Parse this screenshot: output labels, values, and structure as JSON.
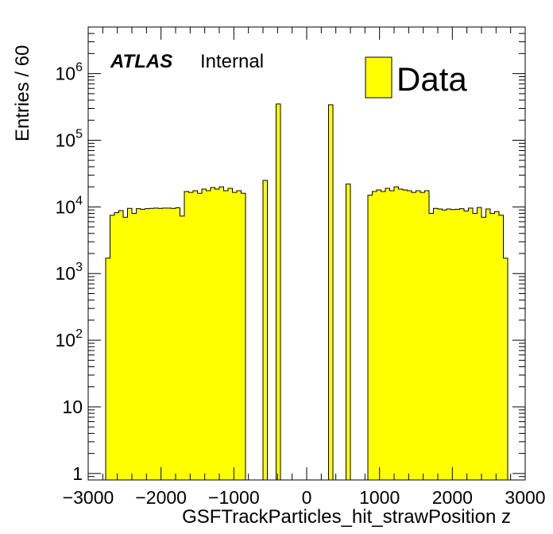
{
  "chart_data": {
    "type": "bar",
    "xlabel": "GSFTrackParticles_hit_strawPosition z",
    "ylabel": "Entries / 60",
    "xlim": [
      -3000,
      3000
    ],
    "ylim": [
      0.8,
      5000000
    ],
    "yscale": "log",
    "bin_width": 60,
    "x_ticks": [
      -3000,
      -2000,
      -1000,
      0,
      1000,
      2000,
      3000
    ],
    "x_tick_labels": [
      "−3000",
      "−2000",
      "−1000",
      "0",
      "1000",
      "2000",
      "3000"
    ],
    "y_ticks": [
      {
        "value": 1,
        "base": "1",
        "exp": ""
      },
      {
        "value": 10,
        "base": "10",
        "exp": ""
      },
      {
        "value": 100,
        "base": "10",
        "exp": "2"
      },
      {
        "value": 1000,
        "base": "10",
        "exp": "3"
      },
      {
        "value": 10000,
        "base": "10",
        "exp": "4"
      },
      {
        "value": 100000,
        "base": "10",
        "exp": "5"
      },
      {
        "value": 1000000,
        "base": "10",
        "exp": "6"
      }
    ],
    "legend": {
      "label": "Data",
      "position": "top-right"
    },
    "annotations": {
      "atlas": "ATLAS",
      "status": "Internal"
    },
    "colors": {
      "fill": "#ffff00",
      "line": "#000000"
    },
    "bins": [
      {
        "x0": -2760,
        "x1": -2700,
        "y": 1700
      },
      {
        "x0": -2700,
        "x1": -2640,
        "y": 7500
      },
      {
        "x0": -2640,
        "x1": -2580,
        "y": 8200
      },
      {
        "x0": -2580,
        "x1": -2520,
        "y": 8800
      },
      {
        "x0": -2520,
        "x1": -2460,
        "y": 7000
      },
      {
        "x0": -2460,
        "x1": -2400,
        "y": 9500
      },
      {
        "x0": -2400,
        "x1": -2340,
        "y": 8000
      },
      {
        "x0": -2340,
        "x1": -2280,
        "y": 9400
      },
      {
        "x0": -2280,
        "x1": -2220,
        "y": 9200
      },
      {
        "x0": -2220,
        "x1": -2160,
        "y": 9400
      },
      {
        "x0": -2160,
        "x1": -2100,
        "y": 9500
      },
      {
        "x0": -2100,
        "x1": -2040,
        "y": 9600
      },
      {
        "x0": -2040,
        "x1": -1980,
        "y": 9500
      },
      {
        "x0": -1980,
        "x1": -1920,
        "y": 9600
      },
      {
        "x0": -1920,
        "x1": -1860,
        "y": 9600
      },
      {
        "x0": -1860,
        "x1": -1800,
        "y": 9500
      },
      {
        "x0": -1800,
        "x1": -1740,
        "y": 9700
      },
      {
        "x0": -1740,
        "x1": -1680,
        "y": 7300
      },
      {
        "x0": -1680,
        "x1": -1620,
        "y": 17000
      },
      {
        "x0": -1620,
        "x1": -1560,
        "y": 16500
      },
      {
        "x0": -1560,
        "x1": -1500,
        "y": 17500
      },
      {
        "x0": -1500,
        "x1": -1440,
        "y": 16000
      },
      {
        "x0": -1440,
        "x1": -1380,
        "y": 18500
      },
      {
        "x0": -1380,
        "x1": -1320,
        "y": 17500
      },
      {
        "x0": -1320,
        "x1": -1260,
        "y": 19500
      },
      {
        "x0": -1260,
        "x1": -1200,
        "y": 18500
      },
      {
        "x0": -1200,
        "x1": -1140,
        "y": 20000
      },
      {
        "x0": -1140,
        "x1": -1080,
        "y": 17500
      },
      {
        "x0": -1080,
        "x1": -1020,
        "y": 19000
      },
      {
        "x0": -1020,
        "x1": -960,
        "y": 16500
      },
      {
        "x0": -960,
        "x1": -900,
        "y": 17500
      },
      {
        "x0": -900,
        "x1": -840,
        "y": 16000
      },
      {
        "x0": -600,
        "x1": -540,
        "y": 25000
      },
      {
        "x0": -420,
        "x1": -360,
        "y": 350000
      },
      {
        "x0": 300,
        "x1": 360,
        "y": 340000
      },
      {
        "x0": 540,
        "x1": 600,
        "y": 22000
      },
      {
        "x0": 840,
        "x1": 900,
        "y": 15000
      },
      {
        "x0": 900,
        "x1": 960,
        "y": 17000
      },
      {
        "x0": 960,
        "x1": 1020,
        "y": 18000
      },
      {
        "x0": 1020,
        "x1": 1080,
        "y": 17000
      },
      {
        "x0": 1080,
        "x1": 1140,
        "y": 19000
      },
      {
        "x0": 1140,
        "x1": 1200,
        "y": 17500
      },
      {
        "x0": 1200,
        "x1": 1260,
        "y": 20000
      },
      {
        "x0": 1260,
        "x1": 1320,
        "y": 18500
      },
      {
        "x0": 1320,
        "x1": 1380,
        "y": 18000
      },
      {
        "x0": 1380,
        "x1": 1440,
        "y": 17500
      },
      {
        "x0": 1440,
        "x1": 1500,
        "y": 16500
      },
      {
        "x0": 1500,
        "x1": 1560,
        "y": 17500
      },
      {
        "x0": 1560,
        "x1": 1620,
        "y": 16500
      },
      {
        "x0": 1620,
        "x1": 1680,
        "y": 17500
      },
      {
        "x0": 1680,
        "x1": 1740,
        "y": 8000
      },
      {
        "x0": 1740,
        "x1": 1800,
        "y": 9500
      },
      {
        "x0": 1800,
        "x1": 1860,
        "y": 9300
      },
      {
        "x0": 1860,
        "x1": 1920,
        "y": 9000
      },
      {
        "x0": 1920,
        "x1": 1980,
        "y": 9300
      },
      {
        "x0": 1980,
        "x1": 2040,
        "y": 9100
      },
      {
        "x0": 2040,
        "x1": 2100,
        "y": 9200
      },
      {
        "x0": 2100,
        "x1": 2160,
        "y": 9400
      },
      {
        "x0": 2160,
        "x1": 2220,
        "y": 8700
      },
      {
        "x0": 2220,
        "x1": 2280,
        "y": 9600
      },
      {
        "x0": 2280,
        "x1": 2340,
        "y": 8000
      },
      {
        "x0": 2340,
        "x1": 2400,
        "y": 9800
      },
      {
        "x0": 2400,
        "x1": 2460,
        "y": 7000
      },
      {
        "x0": 2460,
        "x1": 2520,
        "y": 9300
      },
      {
        "x0": 2520,
        "x1": 2580,
        "y": 8000
      },
      {
        "x0": 2580,
        "x1": 2640,
        "y": 8500
      },
      {
        "x0": 2640,
        "x1": 2700,
        "y": 7500
      },
      {
        "x0": 2700,
        "x1": 2760,
        "y": 1700
      }
    ]
  }
}
